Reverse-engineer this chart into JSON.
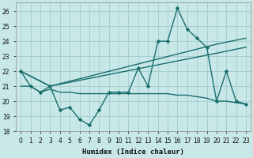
{
  "xlabel": "Humidex (Indice chaleur)",
  "bg_color": "#c8e8e8",
  "grid_color": "#a8d0d0",
  "line_color": "#1a6e6e",
  "xlim": [
    -0.5,
    23.5
  ],
  "ylim": [
    18,
    26.6
  ],
  "xticks": [
    0,
    1,
    2,
    3,
    4,
    5,
    6,
    7,
    8,
    9,
    10,
    11,
    12,
    13,
    14,
    15,
    16,
    17,
    18,
    19,
    20,
    21,
    22,
    23
  ],
  "yticks": [
    18,
    19,
    20,
    21,
    22,
    23,
    24,
    25,
    26
  ],
  "s1x": [
    0,
    1,
    2,
    3,
    4,
    5,
    6,
    7,
    8,
    9,
    10,
    11,
    12,
    13,
    14,
    15,
    16,
    17,
    18,
    19,
    20,
    21,
    22,
    23
  ],
  "s1y": [
    22,
    21,
    20.6,
    21,
    19.4,
    19.6,
    18.8,
    18.4,
    19.4,
    20.6,
    20.6,
    20.6,
    22.2,
    21.0,
    24.0,
    24.0,
    26.2,
    24.8,
    24.2,
    23.6,
    20.0,
    22.0,
    20.0,
    19.8
  ],
  "s2x": [
    0,
    1,
    2,
    3,
    4,
    5,
    6,
    7,
    8,
    9,
    10,
    11,
    12,
    13,
    14,
    15,
    16,
    17,
    18,
    19,
    20,
    21,
    22,
    23
  ],
  "s2y": [
    21,
    21,
    20.6,
    20.8,
    20.6,
    20.6,
    20.5,
    20.5,
    20.5,
    20.5,
    20.5,
    20.5,
    20.5,
    20.5,
    20.5,
    20.5,
    20.4,
    20.4,
    20.3,
    20.2,
    20.0,
    20.0,
    19.9,
    19.8
  ],
  "s3x": [
    0,
    3,
    20,
    23
  ],
  "s3y": [
    22,
    21,
    23.8,
    24.2
  ],
  "s4x": [
    0,
    3,
    20,
    23
  ],
  "s4y": [
    22,
    21,
    23.2,
    23.6
  ]
}
